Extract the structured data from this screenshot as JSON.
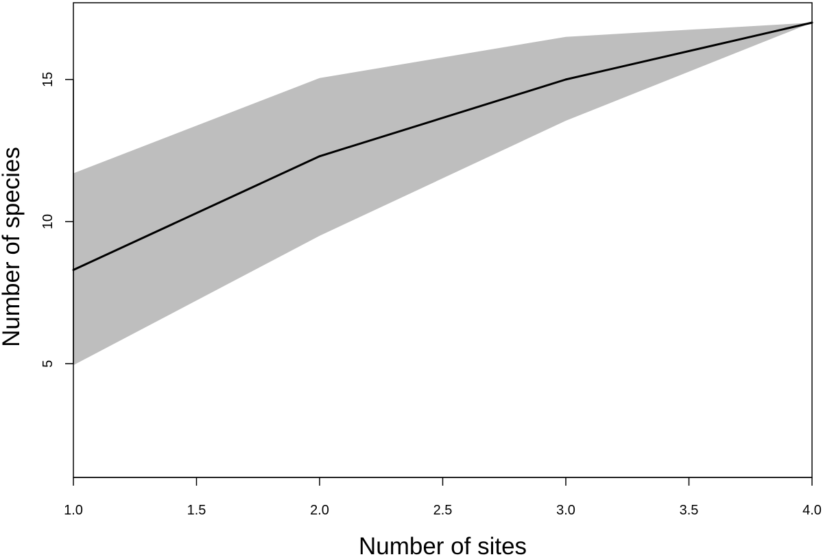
{
  "chart_data": {
    "type": "area",
    "xlabel": "Number of sites",
    "ylabel": "Number of species",
    "xlim": [
      1.0,
      4.0
    ],
    "ylim": [
      1.0,
      17.7
    ],
    "x_ticks": [
      1.0,
      1.5,
      2.0,
      2.5,
      3.0,
      3.5,
      4.0
    ],
    "x_tick_labels": [
      "1.0",
      "1.5",
      "2.0",
      "2.5",
      "3.0",
      "3.5",
      "4.0"
    ],
    "y_ticks": [
      5,
      10,
      15
    ],
    "y_tick_labels": [
      "5",
      "10",
      "15"
    ],
    "grid": false,
    "legend": "none",
    "series": [
      {
        "x": [
          1,
          2,
          3,
          4
        ],
        "values": [
          8.3,
          12.3,
          15.0,
          17.0
        ],
        "lower": [
          4.95,
          9.5,
          13.55,
          17.0
        ],
        "upper": [
          11.7,
          15.05,
          16.5,
          17.0
        ]
      }
    ],
    "colors": {
      "line": "#000000",
      "band": "#bebebe",
      "axes": "#000000"
    }
  }
}
